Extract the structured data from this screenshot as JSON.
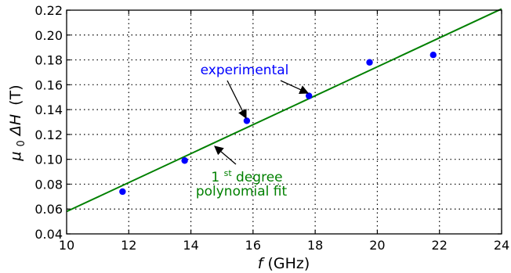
{
  "chart_data": {
    "type": "scatter",
    "title": "",
    "xlabel_symbol": "f",
    "xlabel_unit": "(GHz)",
    "ylabel_symbol_mu": "μ",
    "ylabel_symbol_sub": "0",
    "ylabel_symbol_rest": "ΔH",
    "ylabel_unit": "(T)",
    "xlim": [
      10,
      24
    ],
    "ylim": [
      0.04,
      0.22
    ],
    "grid": true,
    "x_ticks": [
      "10",
      "12",
      "14",
      "16",
      "18",
      "20",
      "22",
      "24"
    ],
    "y_ticks": [
      "0.04",
      "0.06",
      "0.08",
      "0.10",
      "0.12",
      "0.14",
      "0.16",
      "0.18",
      "0.20",
      "0.22"
    ],
    "series": [
      {
        "kind": "points",
        "color": "#0000ff",
        "x": [
          11.8,
          13.8,
          15.8,
          17.8,
          19.75,
          21.8
        ],
        "y": [
          0.074,
          0.099,
          0.131,
          0.151,
          0.178,
          0.184
        ]
      },
      {
        "kind": "line",
        "color": "#008000",
        "x": [
          10,
          24
        ],
        "y": [
          0.058,
          0.221
        ]
      }
    ],
    "annotations": [
      {
        "lines": [
          "experimental"
        ],
        "color": "#0000ff",
        "arrows_to": [
          [
            15.8,
            0.131
          ],
          [
            17.8,
            0.151
          ]
        ]
      },
      {
        "lines": [
          "1",
          "st",
          " degree",
          "polynomial fit"
        ],
        "color": "#008000",
        "arrows_to": [
          [
            14.8,
            0.1118
          ]
        ]
      }
    ]
  }
}
